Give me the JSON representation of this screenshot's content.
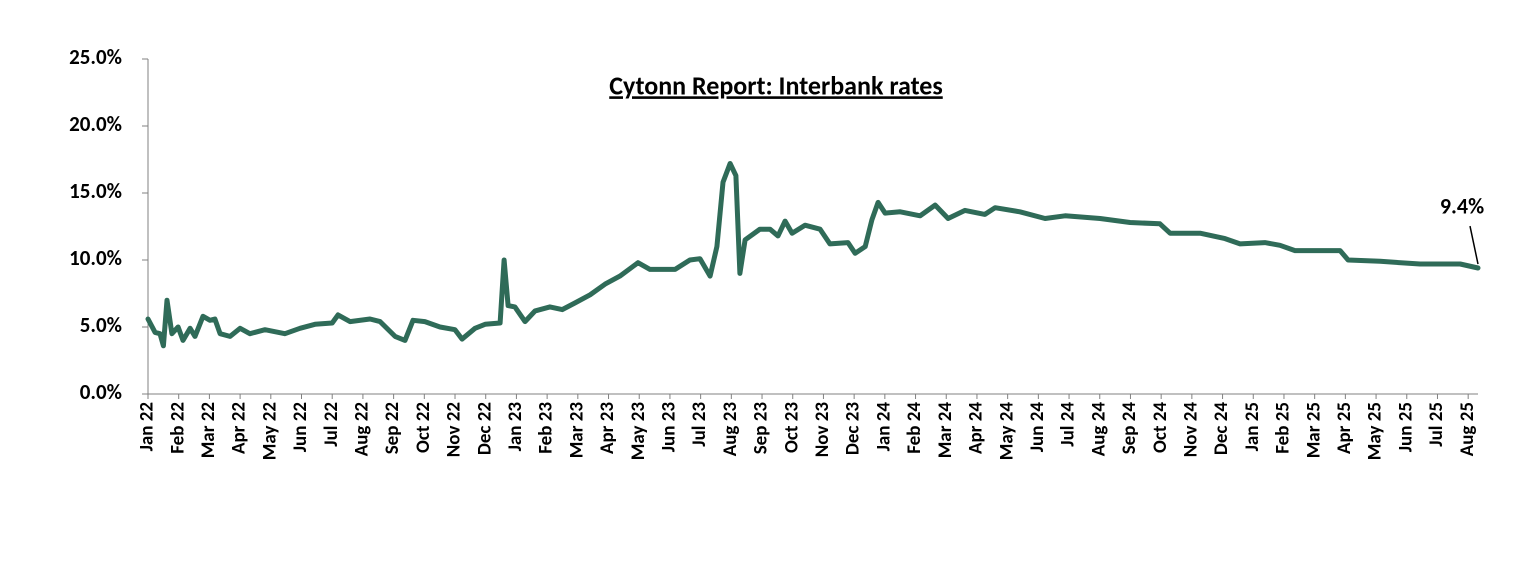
{
  "chart_data": {
    "type": "line",
    "title": "Cytonn Report: Interbank rates",
    "x": [
      0,
      0.23,
      0.39,
      0.5,
      0.62,
      0.78,
      0.98,
      1.14,
      1.37,
      1.53,
      1.79,
      2.02,
      2.18,
      2.35,
      2.67,
      3.0,
      3.32,
      3.81,
      4.46,
      4.95,
      5.44,
      6.0,
      6.19,
      6.58,
      7.23,
      7.56,
      8.05,
      8.37,
      8.63,
      9.02,
      9.51,
      10.0,
      10.23,
      10.65,
      10.98,
      11.47,
      11.6,
      11.73,
      11.95,
      12.28,
      12.61,
      13.09,
      13.49,
      13.91,
      14.4,
      14.89,
      15.37,
      15.96,
      16.35,
      17.17,
      17.65,
      17.98,
      18.31,
      18.53,
      18.73,
      18.96,
      19.15,
      19.28,
      19.45,
      19.93,
      20.26,
      20.52,
      20.75,
      20.98,
      21.4,
      21.89,
      22.21,
      22.8,
      23.03,
      23.36,
      23.58,
      23.78,
      24.01,
      24.5,
      25.15,
      25.64,
      26.06,
      26.61,
      27.26,
      27.59,
      28.4,
      29.22,
      29.87,
      31.01,
      31.99,
      32.96,
      33.29,
      34.27,
      35.08,
      35.57,
      36.38,
      36.87,
      37.36,
      38.83,
      39.09,
      40.13,
      41.43,
      42.74,
      43.32
    ],
    "series": [
      {
        "name": "Interbank rate",
        "color": "#2f6b58",
        "values": [
          5.6,
          4.6,
          4.5,
          3.6,
          7.0,
          4.5,
          5.0,
          4.0,
          4.9,
          4.3,
          5.8,
          5.5,
          5.6,
          4.5,
          4.3,
          4.9,
          4.5,
          4.8,
          4.5,
          4.9,
          5.2,
          5.3,
          5.9,
          5.4,
          5.6,
          5.4,
          4.3,
          4.0,
          5.5,
          5.4,
          5.0,
          4.8,
          4.1,
          4.9,
          5.2,
          5.3,
          10.0,
          6.6,
          6.5,
          5.4,
          6.2,
          6.5,
          6.3,
          6.8,
          7.4,
          8.2,
          8.8,
          9.8,
          9.3,
          9.3,
          10.0,
          10.1,
          8.8,
          11.0,
          15.8,
          17.2,
          16.3,
          9.0,
          11.5,
          12.3,
          12.3,
          11.8,
          12.9,
          12.0,
          12.6,
          12.3,
          11.2,
          11.3,
          10.5,
          11.0,
          13.0,
          14.3,
          13.5,
          13.6,
          13.3,
          14.1,
          13.1,
          13.7,
          13.4,
          13.9,
          13.6,
          13.1,
          13.3,
          13.1,
          12.8,
          12.7,
          12.0,
          12.0,
          11.6,
          11.2,
          11.3,
          11.1,
          10.7,
          10.7,
          10.0,
          9.9,
          9.7,
          9.7,
          9.4
        ]
      }
    ],
    "annotation": "9.4%",
    "xlim": [
      0,
      43.32
    ],
    "xticks": [
      {
        "value": 0,
        "label": "Jan 22"
      },
      {
        "value": 1,
        "label": "Feb 22"
      },
      {
        "value": 2,
        "label": "Mar 22"
      },
      {
        "value": 3,
        "label": "Apr 22"
      },
      {
        "value": 4,
        "label": "May 22"
      },
      {
        "value": 5,
        "label": "Jun 22"
      },
      {
        "value": 6,
        "label": "Jul 22"
      },
      {
        "value": 7,
        "label": "Aug 22"
      },
      {
        "value": 8,
        "label": "Sep 22"
      },
      {
        "value": 9,
        "label": "Oct 22"
      },
      {
        "value": 10,
        "label": "Nov 22"
      },
      {
        "value": 11,
        "label": "Dec 22"
      },
      {
        "value": 12,
        "label": "Jan 23"
      },
      {
        "value": 13,
        "label": "Feb 23"
      },
      {
        "value": 14,
        "label": "Mar 23"
      },
      {
        "value": 15,
        "label": "Apr 23"
      },
      {
        "value": 16,
        "label": "May 23"
      },
      {
        "value": 17,
        "label": "Jun 23"
      },
      {
        "value": 18,
        "label": "Jul 23"
      },
      {
        "value": 19,
        "label": "Aug 23"
      },
      {
        "value": 20,
        "label": "Sep 23"
      },
      {
        "value": 21,
        "label": "Oct 23"
      },
      {
        "value": 22,
        "label": "Nov 23"
      },
      {
        "value": 23,
        "label": "Dec 23"
      },
      {
        "value": 24,
        "label": "Jan 24"
      },
      {
        "value": 25,
        "label": "Feb 24"
      },
      {
        "value": 26,
        "label": "Mar 24"
      },
      {
        "value": 27,
        "label": "Apr 24"
      },
      {
        "value": 28,
        "label": "May 24"
      },
      {
        "value": 29,
        "label": "Jun 24"
      },
      {
        "value": 30,
        "label": "Jul 24"
      },
      {
        "value": 31,
        "label": "Aug 24"
      },
      {
        "value": 32,
        "label": "Sep 24"
      },
      {
        "value": 33,
        "label": "Oct 24"
      },
      {
        "value": 34,
        "label": "Nov 24"
      },
      {
        "value": 35,
        "label": "Dec 24"
      },
      {
        "value": 36,
        "label": "Jan 25"
      },
      {
        "value": 37,
        "label": "Feb 25"
      },
      {
        "value": 38,
        "label": "Mar 25"
      },
      {
        "value": 39,
        "label": "Apr 25"
      },
      {
        "value": 40,
        "label": "May 25"
      },
      {
        "value": 41,
        "label": "Jun 25"
      },
      {
        "value": 42,
        "label": "Jul 25"
      },
      {
        "value": 43,
        "label": "Aug 25"
      }
    ],
    "ylim": [
      0,
      25
    ],
    "yticks": [
      {
        "value": 0,
        "label": "0.0%"
      },
      {
        "value": 5,
        "label": "5.0%"
      },
      {
        "value": 10,
        "label": "10.0%"
      },
      {
        "value": 15,
        "label": "15.0%"
      },
      {
        "value": 20,
        "label": "20.0%"
      },
      {
        "value": 25,
        "label": "25.0%"
      }
    ],
    "grid": false
  }
}
